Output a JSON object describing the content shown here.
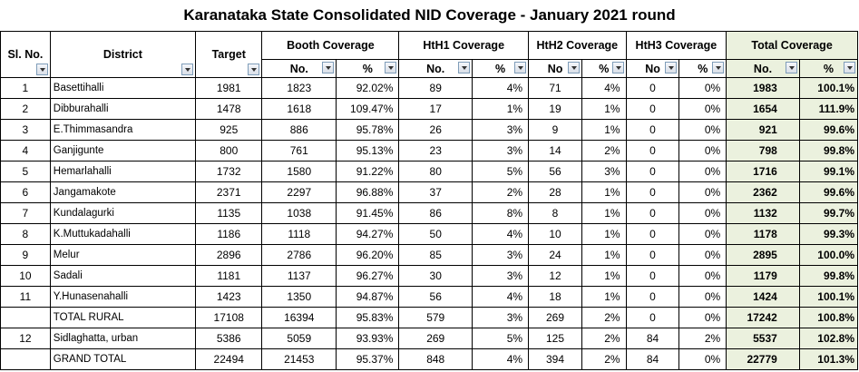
{
  "title": "Karanataka State Consolidated NID Coverage - January 2021 round",
  "headers": {
    "slno": "Sl. No.",
    "district": "District",
    "target": "Target",
    "booth": "Booth Coverage",
    "hth1": "HtH1 Coverage",
    "hth2": "HtH2 Coverage",
    "hth3": "HtH3 Coverage",
    "total": "Total Coverage",
    "sub": {
      "booth_no": "No.",
      "booth_pct": "%",
      "hth1_no": "No.",
      "hth1_pct": "%",
      "hth2_no": "No",
      "hth2_pct": "%",
      "hth3_no": "No",
      "hth3_pct": "%",
      "total_no": "No.",
      "total_pct": "%"
    }
  },
  "rows": [
    {
      "sl": "1",
      "district": "Basettihalli",
      "target": "1981",
      "booth_no": "1823",
      "booth_pct": "92.02%",
      "hth1_no": "89",
      "hth1_pct": "4%",
      "hth2_no": "71",
      "hth2_pct": "4%",
      "hth3_no": "0",
      "hth3_pct": "0%",
      "total_no": "1983",
      "total_pct": "100.1%"
    },
    {
      "sl": "2",
      "district": "Dibburahalli",
      "target": "1478",
      "booth_no": "1618",
      "booth_pct": "109.47%",
      "hth1_no": "17",
      "hth1_pct": "1%",
      "hth2_no": "19",
      "hth2_pct": "1%",
      "hth3_no": "0",
      "hth3_pct": "0%",
      "total_no": "1654",
      "total_pct": "111.9%"
    },
    {
      "sl": "3",
      "district": "E.Thimmasandra",
      "target": "925",
      "booth_no": "886",
      "booth_pct": "95.78%",
      "hth1_no": "26",
      "hth1_pct": "3%",
      "hth2_no": "9",
      "hth2_pct": "1%",
      "hth3_no": "0",
      "hth3_pct": "0%",
      "total_no": "921",
      "total_pct": "99.6%"
    },
    {
      "sl": "4",
      "district": "Ganjigunte",
      "target": "800",
      "booth_no": "761",
      "booth_pct": "95.13%",
      "hth1_no": "23",
      "hth1_pct": "3%",
      "hth2_no": "14",
      "hth2_pct": "2%",
      "hth3_no": "0",
      "hth3_pct": "0%",
      "total_no": "798",
      "total_pct": "99.8%"
    },
    {
      "sl": "5",
      "district": "Hemarlahalli",
      "target": "1732",
      "booth_no": "1580",
      "booth_pct": "91.22%",
      "hth1_no": "80",
      "hth1_pct": "5%",
      "hth2_no": "56",
      "hth2_pct": "3%",
      "hth3_no": "0",
      "hth3_pct": "0%",
      "total_no": "1716",
      "total_pct": "99.1%"
    },
    {
      "sl": "6",
      "district": "Jangamakote",
      "target": "2371",
      "booth_no": "2297",
      "booth_pct": "96.88%",
      "hth1_no": "37",
      "hth1_pct": "2%",
      "hth2_no": "28",
      "hth2_pct": "1%",
      "hth3_no": "0",
      "hth3_pct": "0%",
      "total_no": "2362",
      "total_pct": "99.6%"
    },
    {
      "sl": "7",
      "district": "Kundalagurki",
      "target": "1135",
      "booth_no": "1038",
      "booth_pct": "91.45%",
      "hth1_no": "86",
      "hth1_pct": "8%",
      "hth2_no": "8",
      "hth2_pct": "1%",
      "hth3_no": "0",
      "hth3_pct": "0%",
      "total_no": "1132",
      "total_pct": "99.7%"
    },
    {
      "sl": "8",
      "district": "K.Muttukadahalli",
      "target": "1186",
      "booth_no": "1118",
      "booth_pct": "94.27%",
      "hth1_no": "50",
      "hth1_pct": "4%",
      "hth2_no": "10",
      "hth2_pct": "1%",
      "hth3_no": "0",
      "hth3_pct": "0%",
      "total_no": "1178",
      "total_pct": "99.3%"
    },
    {
      "sl": "9",
      "district": "Melur",
      "target": "2896",
      "booth_no": "2786",
      "booth_pct": "96.20%",
      "hth1_no": "85",
      "hth1_pct": "3%",
      "hth2_no": "24",
      "hth2_pct": "1%",
      "hth3_no": "0",
      "hth3_pct": "0%",
      "total_no": "2895",
      "total_pct": "100.0%"
    },
    {
      "sl": "10",
      "district": "Sadali",
      "target": "1181",
      "booth_no": "1137",
      "booth_pct": "96.27%",
      "hth1_no": "30",
      "hth1_pct": "3%",
      "hth2_no": "12",
      "hth2_pct": "1%",
      "hth3_no": "0",
      "hth3_pct": "0%",
      "total_no": "1179",
      "total_pct": "99.8%"
    },
    {
      "sl": "11",
      "district": "Y.Hunasenahalli",
      "target": "1423",
      "booth_no": "1350",
      "booth_pct": "94.87%",
      "hth1_no": "56",
      "hth1_pct": "4%",
      "hth2_no": "18",
      "hth2_pct": "1%",
      "hth3_no": "0",
      "hth3_pct": "0%",
      "total_no": "1424",
      "total_pct": "100.1%"
    },
    {
      "sl": "",
      "district": "TOTAL RURAL",
      "target": "17108",
      "booth_no": "16394",
      "booth_pct": "95.83%",
      "hth1_no": "579",
      "hth1_pct": "3%",
      "hth2_no": "269",
      "hth2_pct": "2%",
      "hth3_no": "0",
      "hth3_pct": "0%",
      "total_no": "17242",
      "total_pct": "100.8%"
    },
    {
      "sl": "12",
      "district": "Sidlaghatta, urban",
      "target": "5386",
      "booth_no": "5059",
      "booth_pct": "93.93%",
      "hth1_no": "269",
      "hth1_pct": "5%",
      "hth2_no": "125",
      "hth2_pct": "2%",
      "hth3_no": "84",
      "hth3_pct": "2%",
      "total_no": "5537",
      "total_pct": "102.8%"
    },
    {
      "sl": "",
      "district": "GRAND TOTAL",
      "target": "22494",
      "booth_no": "21453",
      "booth_pct": "95.37%",
      "hth1_no": "848",
      "hth1_pct": "4%",
      "hth2_no": "394",
      "hth2_pct": "2%",
      "hth3_no": "84",
      "hth3_pct": "0%",
      "total_no": "22779",
      "total_pct": "101.3%"
    }
  ]
}
